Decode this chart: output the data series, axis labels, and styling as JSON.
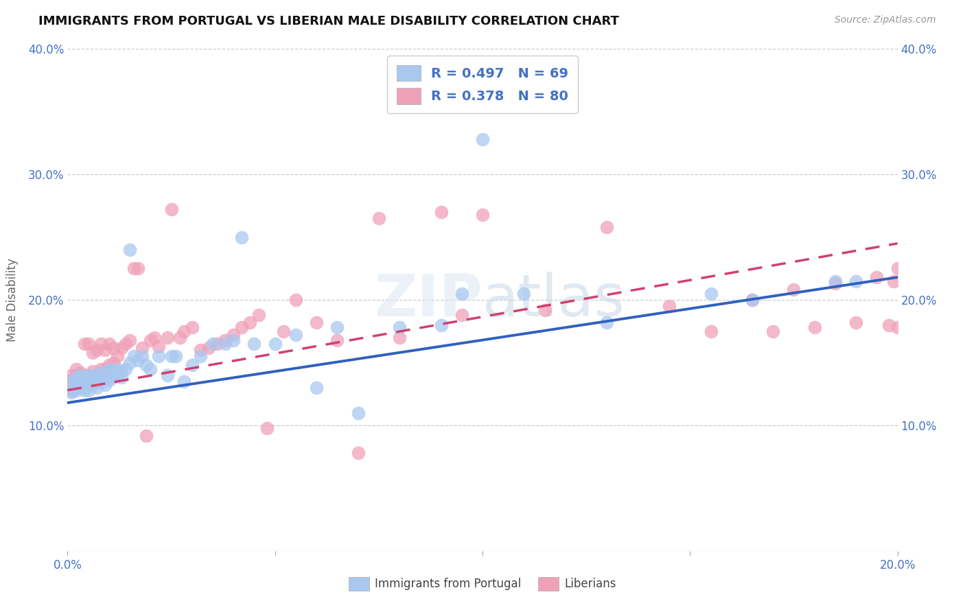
{
  "title": "IMMIGRANTS FROM PORTUGAL VS LIBERIAN MALE DISABILITY CORRELATION CHART",
  "source": "Source: ZipAtlas.com",
  "ylabel_label": "Male Disability",
  "x_min": 0.0,
  "x_max": 0.2,
  "y_min": 0.0,
  "y_max": 0.4,
  "x_ticks": [
    0.0,
    0.05,
    0.1,
    0.15,
    0.2
  ],
  "y_ticks": [
    0.0,
    0.1,
    0.2,
    0.3,
    0.4
  ],
  "x_tick_labels": [
    "0.0%",
    "",
    "",
    "",
    "20.0%"
  ],
  "y_tick_labels_left": [
    "",
    "10.0%",
    "20.0%",
    "30.0%",
    "40.0%"
  ],
  "y_tick_labels_right": [
    "",
    "10.0%",
    "20.0%",
    "30.0%",
    "40.0%"
  ],
  "blue_color": "#a8c8f0",
  "pink_color": "#f0a0b8",
  "blue_line_color": "#3060c0",
  "pink_line_color": "#d04070",
  "pink_line_dash": true,
  "R_blue": 0.497,
  "N_blue": 69,
  "R_pink": 0.378,
  "N_pink": 80,
  "blue_line_x0": 0.0,
  "blue_line_y0": 0.118,
  "blue_line_x1": 0.2,
  "blue_line_y1": 0.218,
  "pink_line_x0": 0.0,
  "pink_line_y0": 0.128,
  "pink_line_x1": 0.2,
  "pink_line_y1": 0.245,
  "blue_scatter_x": [
    0.001,
    0.001,
    0.001,
    0.002,
    0.002,
    0.002,
    0.003,
    0.003,
    0.003,
    0.004,
    0.004,
    0.004,
    0.005,
    0.005,
    0.005,
    0.006,
    0.006,
    0.006,
    0.007,
    0.007,
    0.007,
    0.008,
    0.008,
    0.009,
    0.009,
    0.01,
    0.01,
    0.01,
    0.011,
    0.011,
    0.012,
    0.012,
    0.013,
    0.013,
    0.014,
    0.015,
    0.015,
    0.016,
    0.017,
    0.018,
    0.019,
    0.02,
    0.022,
    0.024,
    0.025,
    0.026,
    0.028,
    0.03,
    0.032,
    0.035,
    0.038,
    0.04,
    0.042,
    0.045,
    0.05,
    0.055,
    0.06,
    0.065,
    0.07,
    0.08,
    0.09,
    0.095,
    0.1,
    0.11,
    0.13,
    0.155,
    0.165,
    0.185,
    0.19
  ],
  "blue_scatter_y": [
    0.126,
    0.13,
    0.135,
    0.128,
    0.132,
    0.138,
    0.13,
    0.135,
    0.14,
    0.128,
    0.133,
    0.138,
    0.128,
    0.133,
    0.14,
    0.132,
    0.136,
    0.14,
    0.13,
    0.135,
    0.14,
    0.135,
    0.142,
    0.132,
    0.138,
    0.136,
    0.14,
    0.145,
    0.138,
    0.143,
    0.14,
    0.145,
    0.138,
    0.143,
    0.145,
    0.24,
    0.15,
    0.155,
    0.152,
    0.155,
    0.148,
    0.145,
    0.155,
    0.14,
    0.155,
    0.155,
    0.135,
    0.148,
    0.155,
    0.165,
    0.165,
    0.168,
    0.25,
    0.165,
    0.165,
    0.172,
    0.13,
    0.178,
    0.11,
    0.178,
    0.18,
    0.205,
    0.328,
    0.205,
    0.182,
    0.205,
    0.2,
    0.215,
    0.215
  ],
  "pink_scatter_x": [
    0.001,
    0.001,
    0.001,
    0.001,
    0.002,
    0.002,
    0.002,
    0.002,
    0.003,
    0.003,
    0.003,
    0.004,
    0.004,
    0.004,
    0.005,
    0.005,
    0.005,
    0.006,
    0.006,
    0.006,
    0.007,
    0.007,
    0.008,
    0.008,
    0.009,
    0.009,
    0.01,
    0.01,
    0.011,
    0.011,
    0.012,
    0.013,
    0.014,
    0.015,
    0.016,
    0.017,
    0.018,
    0.019,
    0.02,
    0.021,
    0.022,
    0.024,
    0.025,
    0.027,
    0.028,
    0.03,
    0.032,
    0.034,
    0.036,
    0.038,
    0.04,
    0.042,
    0.044,
    0.046,
    0.048,
    0.052,
    0.055,
    0.06,
    0.065,
    0.07,
    0.075,
    0.08,
    0.09,
    0.095,
    0.1,
    0.115,
    0.13,
    0.145,
    0.155,
    0.165,
    0.17,
    0.175,
    0.18,
    0.185,
    0.19,
    0.195,
    0.198,
    0.199,
    0.2,
    0.2
  ],
  "pink_scatter_y": [
    0.128,
    0.132,
    0.136,
    0.14,
    0.13,
    0.135,
    0.14,
    0.145,
    0.132,
    0.136,
    0.142,
    0.135,
    0.14,
    0.165,
    0.135,
    0.14,
    0.165,
    0.138,
    0.143,
    0.158,
    0.14,
    0.16,
    0.145,
    0.165,
    0.145,
    0.16,
    0.148,
    0.165,
    0.15,
    0.162,
    0.155,
    0.162,
    0.165,
    0.168,
    0.225,
    0.225,
    0.162,
    0.092,
    0.168,
    0.17,
    0.163,
    0.17,
    0.272,
    0.17,
    0.175,
    0.178,
    0.16,
    0.162,
    0.165,
    0.168,
    0.172,
    0.178,
    0.182,
    0.188,
    0.098,
    0.175,
    0.2,
    0.182,
    0.168,
    0.078,
    0.265,
    0.17,
    0.27,
    0.188,
    0.268,
    0.192,
    0.258,
    0.195,
    0.175,
    0.2,
    0.175,
    0.208,
    0.178,
    0.213,
    0.182,
    0.218,
    0.18,
    0.215,
    0.178,
    0.225
  ]
}
